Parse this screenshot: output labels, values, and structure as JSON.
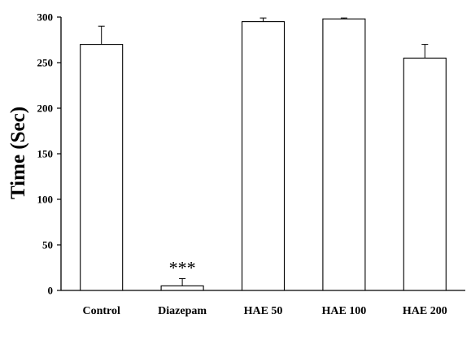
{
  "chart_data": {
    "type": "bar",
    "title": "",
    "xlabel": "",
    "ylabel": "Time (Sec)",
    "categories": [
      "Control",
      "Diazepam",
      "HAE 50",
      "HAE 100",
      "HAE 200"
    ],
    "values": [
      270,
      5,
      295,
      298,
      255
    ],
    "errors": [
      20,
      8,
      4,
      1,
      15
    ],
    "ylim": [
      0,
      300
    ],
    "yticks": [
      "0",
      "50",
      "100",
      "150",
      "200",
      "250",
      "300"
    ],
    "grid": false,
    "legend": "none",
    "annotations": [
      {
        "category": "Diazepam",
        "text": "***"
      }
    ],
    "colors": {
      "bar_fill": "#ffffff",
      "bar_stroke": "#000000",
      "axis": "#000000"
    }
  }
}
